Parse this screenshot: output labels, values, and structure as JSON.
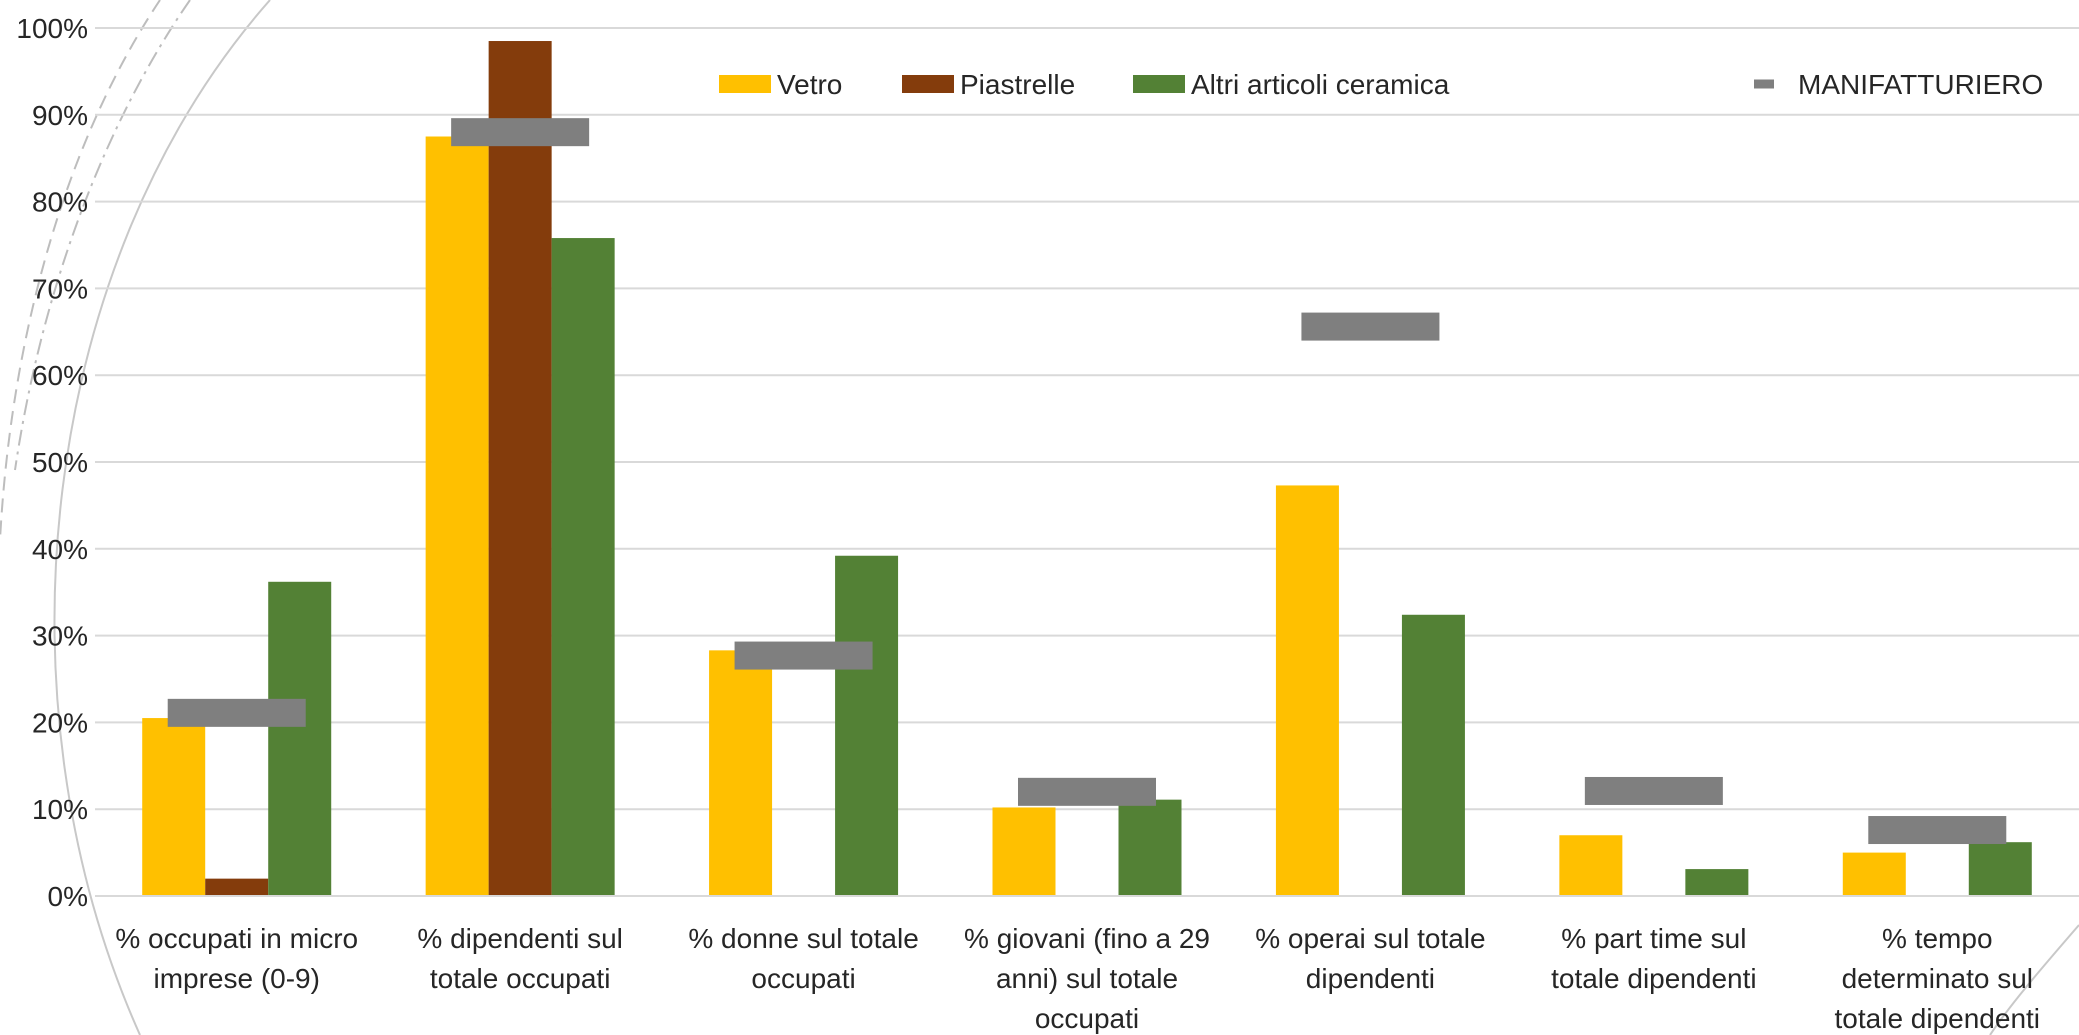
{
  "chart_data": {
    "type": "bar",
    "title": "",
    "xlabel": "",
    "ylabel": "",
    "ylim": [
      0,
      100
    ],
    "y_ticks": [
      "0%",
      "10%",
      "20%",
      "30%",
      "40%",
      "50%",
      "60%",
      "70%",
      "80%",
      "90%",
      "100%"
    ],
    "grid": true,
    "legend_position": "top",
    "categories": [
      [
        "% occupati in micro",
        "imprese (0-9)"
      ],
      [
        "% dipendenti sul",
        "totale occupati"
      ],
      [
        "% donne sul totale",
        "occupati"
      ],
      [
        "% giovani (fino a 29",
        "anni) sul totale",
        "occupati"
      ],
      [
        "% operai sul totale",
        "dipendenti"
      ],
      [
        "% part time sul",
        "totale dipendenti"
      ],
      [
        "% tempo",
        "determinato sul",
        "totale dipendenti"
      ]
    ],
    "series": [
      {
        "name": "Vetro",
        "color": "#ffc000",
        "values": [
          20.5,
          87.5,
          28.3,
          10.2,
          47.3,
          7.0,
          5.0
        ]
      },
      {
        "name": "Piastrelle",
        "color": "#843c0c",
        "values": [
          2.0,
          98.5,
          0,
          0,
          0,
          0,
          0
        ]
      },
      {
        "name": "Altri articoli ceramica",
        "color": "#538135",
        "values": [
          36.2,
          75.8,
          39.2,
          11.1,
          32.4,
          3.1,
          6.2
        ]
      }
    ],
    "benchmark": {
      "name": "MANIFATTURIERO",
      "color": "#7f7f7f",
      "values": [
        21.1,
        88.0,
        27.7,
        12.0,
        65.6,
        12.1,
        7.6
      ]
    }
  }
}
